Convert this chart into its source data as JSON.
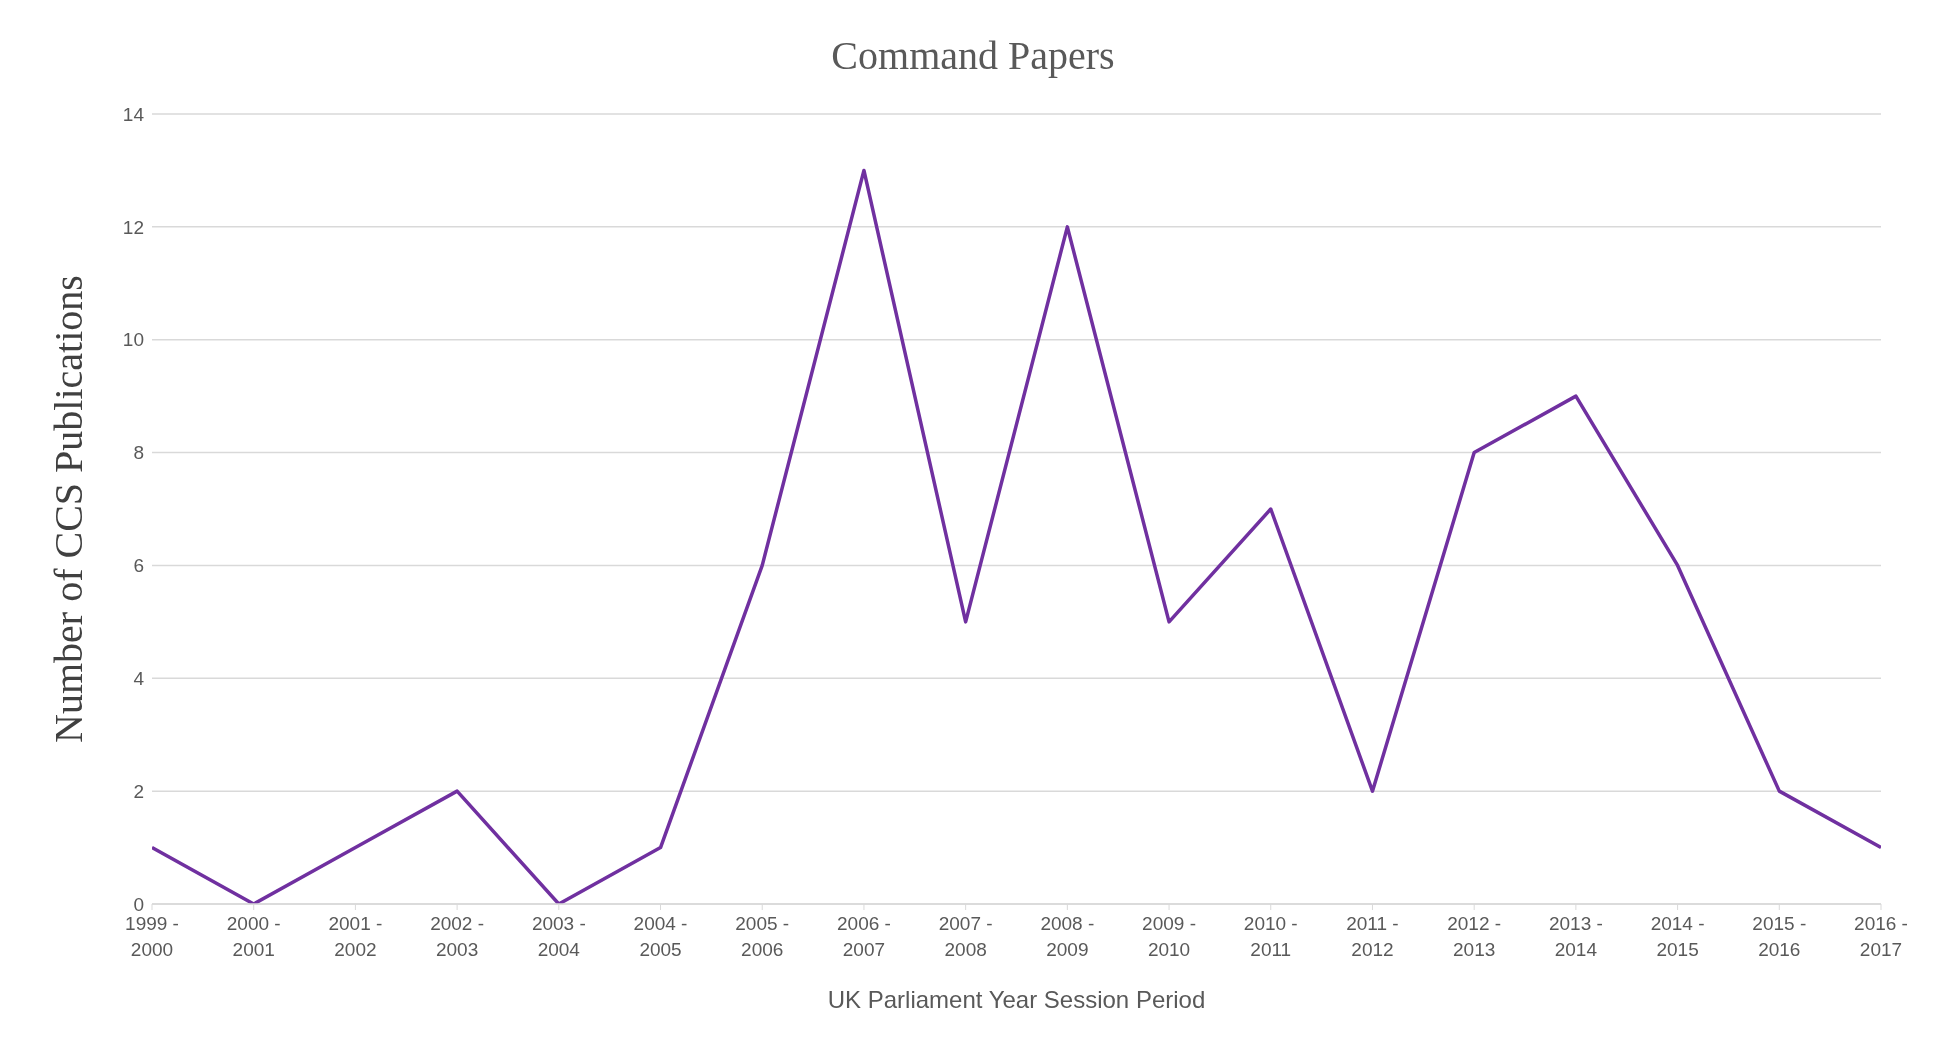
{
  "chart_data": {
    "type": "line",
    "title": "Command Papers",
    "xlabel": "UK Parliament Year Session Period",
    "ylabel": "Number of CCS Publications",
    "categories": [
      "1999 - 2000",
      "2000 - 2001",
      "2001 - 2002",
      "2002 - 2003",
      "2003 - 2004",
      "2004 - 2005",
      "2005 - 2006",
      "2006 - 2007",
      "2007 - 2008",
      "2008 - 2009",
      "2009 - 2010",
      "2010 - 2011",
      "2011 - 2012",
      "2012 - 2013",
      "2013 - 2014",
      "2014 - 2015",
      "2015 - 2016",
      "2016 - 2017"
    ],
    "series": [
      {
        "color": "#7030a0",
        "values": [
          1,
          0,
          1,
          2,
          0,
          1,
          6,
          13,
          5,
          12,
          5,
          7,
          2,
          8,
          9,
          6,
          2,
          1
        ]
      }
    ],
    "ylim": [
      0,
      14
    ],
    "yticks": [
      0,
      2,
      4,
      6,
      8,
      10,
      12,
      14
    ],
    "grid": "y",
    "legend": false,
    "marker": "none",
    "line_style": "solid"
  }
}
